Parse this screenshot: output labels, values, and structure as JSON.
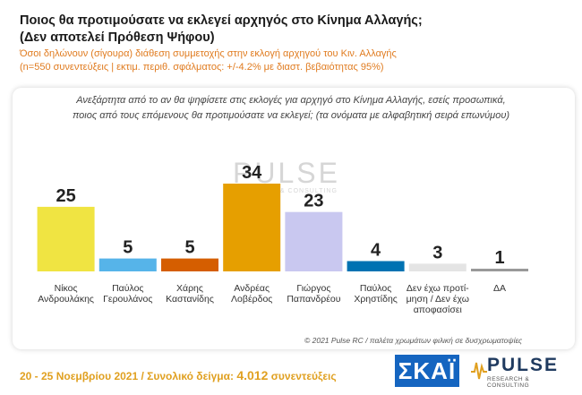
{
  "title_line1": "Ποιος θα προτιμούσατε να εκλεγεί αρχηγός στο Κίνημα Αλλαγής;",
  "title_line2": "(Δεν αποτελεί Πρόθεση Ψήφου)",
  "subtitle_line1": "Όσοι δηλώνουν (σίγουρα) διάθεση συμμετοχής στην εκλογή αρχηγού του Κιν. Αλλαγής",
  "subtitle_line2": "(n=550 συνεντεύξεις | εκτιμ. περιθ. σφάλματος: +/-4.2% με διαστ. βεβαιότητας 95%)",
  "question_line1": "Ανεξάρτητα από το αν θα ψηφίσετε στις εκλογές για αρχηγό στο Κίνημα Αλλαγής, εσείς προσωπικά,",
  "question_line2": "ποιος από τους επόμενους θα προτιμούσατε να εκλεγεί; (τα ονόματα με αλφαβητική σειρά επωνύμου)",
  "watermark_main": "PULSE",
  "watermark_sub": "RESEARCH & CONSULTING",
  "copyright": "© 2021 Pulse RC  /  παλέτα χρωμάτων φιλική σε δυσχρωματοψίες",
  "footer": {
    "dates": "20 - 25  Νοεμβρίου 2021  /  Συνολικό δείγμα: ",
    "sample": "4.012",
    "suffix": " συνεντεύξεις"
  },
  "logos": {
    "skai": "ΣΚΑΪ",
    "pulse": "PULSE",
    "pulse_sub": "RESEARCH & CONSULTING"
  },
  "chart_data": {
    "type": "bar",
    "categories": [
      [
        "Νίκος",
        "Ανδρουλάκης"
      ],
      [
        "Παύλος",
        "Γερουλάνος"
      ],
      [
        "Χάρης",
        "Καστανίδης"
      ],
      [
        "Ανδρέας",
        "Λοβέρδος"
      ],
      [
        "Γιώργος",
        "Παπανδρέου"
      ],
      [
        "Παύλος",
        "Χρηστίδης"
      ],
      [
        "Δεν έχω προτί-",
        "μηση / Δεν έχω",
        "αποφασίσει"
      ],
      [
        "ΔΑ"
      ]
    ],
    "values": [
      25,
      5,
      5,
      34,
      23,
      4,
      3,
      1
    ],
    "colors": [
      "#f0e442",
      "#56b4e9",
      "#d55e00",
      "#e69f00",
      "#c9c8f0",
      "#0072b2",
      "#e4e4e4",
      "#999999"
    ],
    "ylim": [
      0,
      40
    ],
    "data_labels": true,
    "grid": false
  }
}
